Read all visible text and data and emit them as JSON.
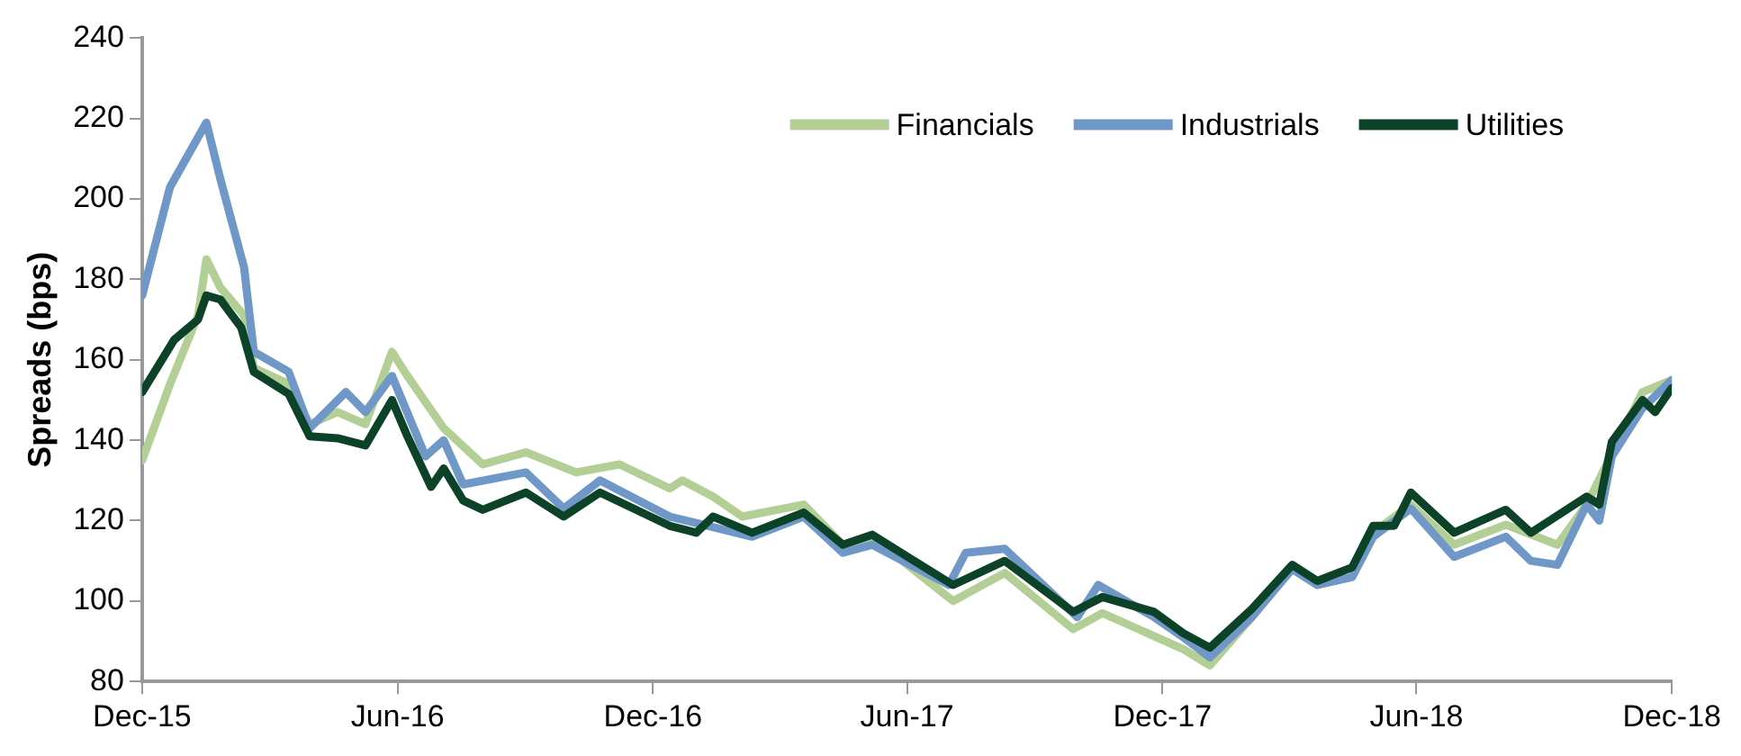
{
  "chart_data": {
    "type": "line",
    "ylabel": "Spreads (bps)",
    "xlim": [
      "2015-12-01",
      "2018-12-01"
    ],
    "xticks": [
      {
        "value": "2015-12-01",
        "label": "Dec-15"
      },
      {
        "value": "2016-06-01",
        "label": "Jun-16"
      },
      {
        "value": "2016-12-01",
        "label": "Dec-16"
      },
      {
        "value": "2017-06-01",
        "label": "Jun-17"
      },
      {
        "value": "2017-12-01",
        "label": "Dec-17"
      },
      {
        "value": "2018-06-01",
        "label": "Jun-18"
      },
      {
        "value": "2018-12-01",
        "label": "Dec-18"
      }
    ],
    "ylim": [
      80,
      240
    ],
    "yticks": [
      80,
      100,
      120,
      140,
      160,
      180,
      200,
      220,
      240
    ],
    "grid": false,
    "legend": "top right",
    "marker": "none",
    "line_style": "solid",
    "series": [
      {
        "name": "Financials",
        "color": "#b3cf95",
        "x": [
          "2015-12-01",
          "2015-12-21",
          "2016-01-10",
          "2016-01-16",
          "2016-01-26",
          "2016-02-12",
          "2016-02-19",
          "2016-03-15",
          "2016-03-30",
          "2016-04-19",
          "2016-05-09",
          "2016-05-28",
          "2016-06-08",
          "2016-07-04",
          "2016-08-01",
          "2016-09-01",
          "2016-10-07",
          "2016-11-07",
          "2016-12-13",
          "2016-12-22",
          "2017-01-13",
          "2017-02-03",
          "2017-03-19",
          "2017-04-16",
          "2017-05-07",
          "2017-07-04",
          "2017-08-10",
          "2017-09-28",
          "2017-10-19",
          "2017-12-16",
          "2018-01-04",
          "2018-02-03",
          "2018-03-04",
          "2018-03-22",
          "2018-04-16",
          "2018-05-01",
          "2018-05-28",
          "2018-06-28",
          "2018-08-04",
          "2018-09-10",
          "2018-10-01",
          "2018-11-10",
          "2018-12-01"
        ],
        "values": [
          135,
          154,
          171,
          185,
          178,
          171,
          158,
          154,
          144,
          147,
          144,
          162,
          156,
          143,
          134,
          137,
          132,
          134,
          128,
          130,
          126,
          121,
          124,
          114,
          116,
          100,
          107,
          93,
          97,
          88,
          84,
          96,
          108,
          104,
          106,
          117,
          124,
          114,
          119,
          114,
          124,
          152,
          155
        ]
      },
      {
        "name": "Industrials",
        "color": "#6f97c8",
        "x": [
          "2015-12-01",
          "2015-12-21",
          "2016-01-16",
          "2016-01-26",
          "2016-02-12",
          "2016-02-19",
          "2016-03-15",
          "2016-03-30",
          "2016-04-25",
          "2016-05-09",
          "2016-05-28",
          "2016-06-21",
          "2016-07-04",
          "2016-07-18",
          "2016-09-01",
          "2016-09-28",
          "2016-10-24",
          "2016-12-13",
          "2017-02-10",
          "2017-03-19",
          "2017-04-16",
          "2017-05-07",
          "2017-07-01",
          "2017-07-13",
          "2017-08-10",
          "2017-10-01",
          "2017-10-16",
          "2017-11-25",
          "2017-12-16",
          "2018-01-04",
          "2018-02-03",
          "2018-03-04",
          "2018-03-22",
          "2018-04-16",
          "2018-05-01",
          "2018-05-28",
          "2018-06-28",
          "2018-08-04",
          "2018-08-22",
          "2018-09-10",
          "2018-10-01",
          "2018-10-10",
          "2018-10-19",
          "2018-11-10",
          "2018-12-01"
        ],
        "values": [
          176,
          203,
          219,
          205,
          183,
          162,
          157,
          143,
          152,
          147,
          156,
          136,
          140,
          129,
          132,
          123,
          130,
          121,
          116,
          121,
          112,
          114,
          104,
          112,
          113,
          96,
          104,
          96,
          91,
          86,
          96,
          108,
          104,
          106,
          116,
          123,
          111,
          116,
          110,
          109,
          124,
          120,
          136,
          148,
          155
        ]
      },
      {
        "name": "Utilities",
        "color": "#0b4228",
        "x": [
          "2015-12-01",
          "2015-12-24",
          "2016-01-10",
          "2016-01-16",
          "2016-01-26",
          "2016-02-10",
          "2016-02-19",
          "2016-03-15",
          "2016-03-30",
          "2016-04-19",
          "2016-05-09",
          "2016-05-28",
          "2016-06-08",
          "2016-06-25",
          "2016-07-04",
          "2016-07-18",
          "2016-08-01",
          "2016-09-01",
          "2016-09-28",
          "2016-10-24",
          "2016-12-13",
          "2017-01-01",
          "2017-01-13",
          "2017-02-10",
          "2017-03-19",
          "2017-04-16",
          "2017-05-07",
          "2017-07-04",
          "2017-08-10",
          "2017-09-28",
          "2017-10-19",
          "2017-11-25",
          "2017-12-16",
          "2018-01-04",
          "2018-02-03",
          "2018-03-04",
          "2018-03-22",
          "2018-04-16",
          "2018-05-01",
          "2018-05-16",
          "2018-05-28",
          "2018-06-28",
          "2018-08-04",
          "2018-08-22",
          "2018-10-01",
          "2018-10-10",
          "2018-10-19",
          "2018-11-10",
          "2018-11-19",
          "2018-12-01"
        ],
        "values": [
          152,
          165,
          170,
          176,
          175,
          168,
          157,
          151.5,
          141,
          140.5,
          138.7,
          150,
          141,
          128.4,
          133,
          125,
          122.7,
          127,
          121,
          127,
          118.7,
          117,
          121,
          117,
          122,
          114,
          116.5,
          104,
          110,
          97.3,
          101,
          97.3,
          92,
          88.4,
          98,
          109,
          105,
          108.4,
          118.7,
          118.7,
          127,
          117,
          122.7,
          117,
          126,
          124,
          139.6,
          150,
          147,
          153
        ]
      }
    ]
  }
}
